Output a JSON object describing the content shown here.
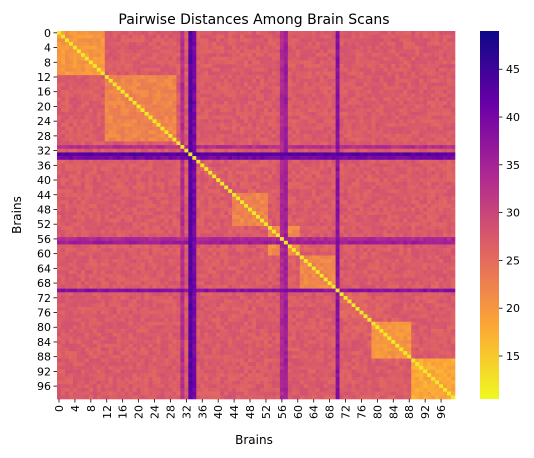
{
  "chart_data": {
    "type": "heatmap",
    "title": "Pairwise Distances Among Brain Scans",
    "xlabel": "Brains",
    "ylabel": "Brains",
    "n": 100,
    "tick_step": 4,
    "x_ticks": [
      "0",
      "4",
      "8",
      "12",
      "16",
      "20",
      "24",
      "28",
      "32",
      "36",
      "40",
      "44",
      "48",
      "52",
      "56",
      "60",
      "64",
      "68",
      "72",
      "76",
      "80",
      "84",
      "88",
      "92",
      "96"
    ],
    "y_ticks": [
      "0",
      "4",
      "8",
      "12",
      "16",
      "20",
      "24",
      "28",
      "32",
      "36",
      "40",
      "44",
      "48",
      "52",
      "56",
      "60",
      "64",
      "68",
      "72",
      "76",
      "80",
      "84",
      "88",
      "92",
      "96"
    ],
    "color_range": [
      10.5,
      49
    ],
    "colorbar_ticks": [
      "15",
      "20",
      "25",
      "30",
      "35",
      "40",
      "45"
    ],
    "colorbar_tick_values": [
      15,
      20,
      25,
      30,
      35,
      40,
      45
    ],
    "colormap": "plasma_r",
    "colormap_stops": [
      "#f0f921",
      "#fca636",
      "#e16462",
      "#b12a90",
      "#6a00a8",
      "#0d0887"
    ],
    "diagonal_value": 12,
    "clusters": [
      {
        "start": 0,
        "end": 11,
        "within": 20
      },
      {
        "start": 12,
        "end": 29,
        "within": 22
      },
      {
        "start": 30,
        "end": 33,
        "within": 27
      },
      {
        "start": 34,
        "end": 43,
        "within": 27
      },
      {
        "start": 44,
        "end": 52,
        "within": 22
      },
      {
        "start": 53,
        "end": 60,
        "within": 21
      },
      {
        "start": 61,
        "end": 70,
        "within": 22
      },
      {
        "start": 71,
        "end": 78,
        "within": 26
      },
      {
        "start": 79,
        "end": 88,
        "within": 20
      },
      {
        "start": 89,
        "end": 99,
        "within": 18
      }
    ],
    "between_clusters": 27,
    "outlier_rows": [
      {
        "index": 33,
        "value": 43
      },
      {
        "index": 34,
        "value": 40
      },
      {
        "index": 70,
        "value": 38
      },
      {
        "index": 57,
        "value": 36
      },
      {
        "index": 56,
        "value": 34
      },
      {
        "index": 31,
        "value": 33
      }
    ]
  }
}
